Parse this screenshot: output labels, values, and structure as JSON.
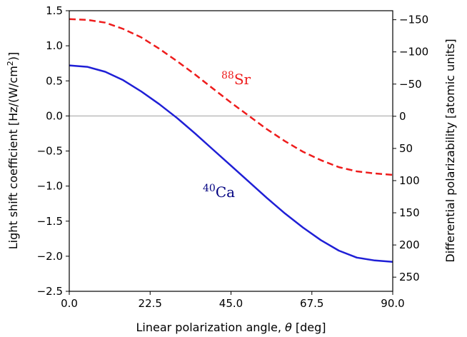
{
  "chart_data": {
    "type": "line",
    "xlabel": "Linear polarization angle, θ [deg]",
    "xlabel_prefix": "Linear polarization angle, ",
    "xlabel_var": "θ",
    "xlabel_suffix": " [deg]",
    "ylabel": "Light shift coefficient [Hz/(W/cm²)]",
    "ylabel_prefix": "Light shift coefficient [Hz/(W/cm",
    "ylabel_sup": "2",
    "ylabel_suffix": ")]",
    "y2label": "Differential polarizability [atomic units]",
    "xlim": [
      0,
      90
    ],
    "ylim": [
      -2.5,
      1.5
    ],
    "y2lim": [
      -164,
      272
    ],
    "y2_inverted": true,
    "grid": false,
    "x_ticks": [
      0,
      22.5,
      45,
      67.5,
      90
    ],
    "x_tick_labels": [
      "0.0",
      "22.5",
      "45.0",
      "67.5",
      "90.0"
    ],
    "y_ticks": [
      1.5,
      1.0,
      0.5,
      0.0,
      -0.5,
      -1.0,
      -1.5,
      -2.0,
      -2.5
    ],
    "y_tick_labels": [
      "1.5",
      "1.0",
      "0.5",
      "0.0",
      "−0.5",
      "−1.0",
      "−1.5",
      "−2.0",
      "−2.5"
    ],
    "y2_ticks": [
      -150,
      -100,
      -50,
      0,
      50,
      100,
      150,
      200,
      250
    ],
    "y2_tick_labels": [
      "−150",
      "−100",
      "−50",
      "0",
      "50",
      "100",
      "150",
      "200",
      "250"
    ],
    "reference_line": {
      "y": 0.0,
      "color": "#a0a0a0"
    },
    "series": [
      {
        "isotope": "88",
        "element": "Sr",
        "color": "#ee1c1c",
        "style": "dashed",
        "x": [
          0,
          5,
          10,
          15,
          20,
          25,
          30,
          35,
          40,
          45,
          50,
          55,
          60,
          65,
          70,
          75,
          80,
          85,
          90
        ],
        "y": [
          1.38,
          1.37,
          1.33,
          1.24,
          1.12,
          0.96,
          0.78,
          0.59,
          0.39,
          0.19,
          0.0,
          -0.19,
          -0.36,
          -0.51,
          -0.63,
          -0.73,
          -0.79,
          -0.82,
          -0.84
        ]
      },
      {
        "isotope": "40",
        "element": "Ca",
        "color": "#1f1fd6",
        "style": "solid",
        "x": [
          0,
          5,
          10,
          15,
          20,
          25,
          30,
          35,
          40,
          45,
          50,
          55,
          60,
          65,
          70,
          75,
          80,
          85,
          90
        ],
        "y": [
          0.72,
          0.7,
          0.63,
          0.51,
          0.35,
          0.17,
          -0.03,
          -0.25,
          -0.48,
          -0.71,
          -0.94,
          -1.17,
          -1.39,
          -1.59,
          -1.77,
          -1.92,
          -2.02,
          -2.06,
          -2.08
        ]
      }
    ]
  }
}
